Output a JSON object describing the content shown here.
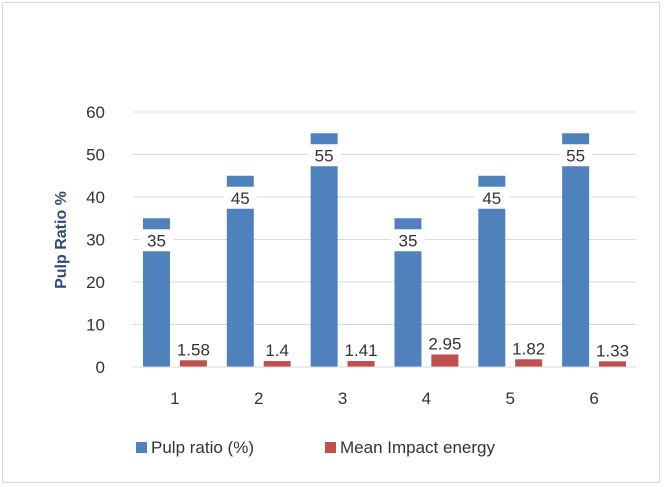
{
  "chart_data": {
    "type": "bar",
    "categories": [
      "1",
      "2",
      "3",
      "4",
      "5",
      "6"
    ],
    "series": [
      {
        "name": "Pulp ratio (%)",
        "values": [
          35,
          45,
          55,
          35,
          45,
          55
        ],
        "color": "#4f81bd"
      },
      {
        "name": "Mean Impact energy",
        "values": [
          1.58,
          1.4,
          1.41,
          2.95,
          1.82,
          1.33
        ],
        "color": "#c0504d"
      }
    ],
    "data_labels": [
      [
        "35",
        "45",
        "55",
        "35",
        "45",
        "55"
      ],
      [
        "1.58",
        "1.4",
        "1.41",
        "2.95",
        "1.82",
        "1.33"
      ]
    ],
    "ylabel": "Pulp  Ratio %",
    "ylim": [
      0,
      60
    ],
    "yticks": [
      "0",
      "10",
      "20",
      "30",
      "40",
      "50",
      "60"
    ],
    "grid": true,
    "legend_position": "bottom"
  }
}
